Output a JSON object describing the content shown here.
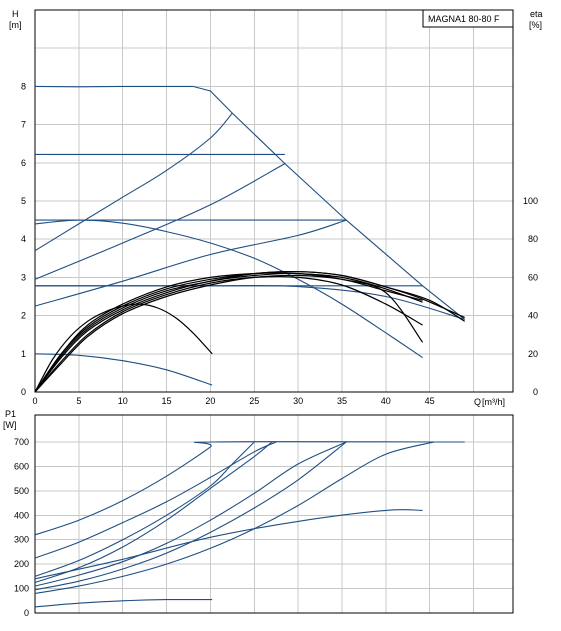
{
  "chart_data": [
    {
      "type": "line",
      "title": "MAGNA1 80-80 F",
      "ylabel_left": "H",
      "ylabel_left_unit": "[m]",
      "ylabel_right": "eta",
      "ylabel_right_unit": "[%]",
      "xlabel": "Q",
      "xlabel_unit": "[m³/h]",
      "xlim": [
        0,
        50
      ],
      "ylim_left": [
        0,
        10
      ],
      "ylim_right": [
        0,
        200
      ],
      "grid": true,
      "x_ticks": [
        "0",
        "5",
        "10",
        "15",
        "20",
        "25",
        "30",
        "35",
        "40",
        "45"
      ],
      "y_ticks_left": [
        "0",
        "1",
        "2",
        "3",
        "4",
        "5",
        "6",
        "7",
        "8"
      ],
      "y_ticks_right": [
        "0",
        "20",
        "40",
        "60",
        "80",
        "100"
      ],
      "colors": {
        "pump": "#1f4f82",
        "eta": "#000000"
      },
      "series": [
        {
          "axis": "left",
          "role": "pump",
          "points": [
            [
              0,
              8.0
            ],
            [
              5,
              7.99
            ],
            [
              10,
              8.0
            ],
            [
              15,
              8.0
            ],
            [
              18,
              8.0
            ],
            [
              20,
              7.88
            ],
            [
              22.5,
              7.3
            ],
            [
              28.5,
              5.98
            ],
            [
              35.5,
              4.5
            ],
            [
              44.2,
              2.78
            ],
            [
              49,
              1.9
            ]
          ]
        },
        {
          "axis": "left",
          "role": "pump",
          "points": [
            [
              0,
              6.22
            ],
            [
              28.5,
              6.22
            ]
          ]
        },
        {
          "axis": "left",
          "role": "pump",
          "points": [
            [
              0,
              4.5
            ],
            [
              35.5,
              4.5
            ]
          ]
        },
        {
          "axis": "left",
          "role": "pump",
          "points": [
            [
              0,
              2.78
            ],
            [
              44.2,
              2.78
            ]
          ]
        },
        {
          "axis": "left",
          "role": "pump",
          "points": [
            [
              0,
              3.7
            ],
            [
              5,
              4.4
            ],
            [
              10,
              5.1
            ],
            [
              15,
              5.8
            ],
            [
              20,
              6.65
            ],
            [
              22.5,
              7.3
            ]
          ]
        },
        {
          "axis": "left",
          "role": "pump",
          "points": [
            [
              0,
              2.95
            ],
            [
              10,
              3.9
            ],
            [
              20,
              4.9
            ],
            [
              28.5,
              5.98
            ]
          ]
        },
        {
          "axis": "left",
          "role": "pump",
          "points": [
            [
              0,
              2.25
            ],
            [
              10,
              2.9
            ],
            [
              20,
              3.6
            ],
            [
              30,
              4.1
            ],
            [
              35.5,
              4.5
            ]
          ]
        },
        {
          "axis": "left",
          "role": "pump",
          "points": [
            [
              0,
              4.4
            ],
            [
              5,
              4.5
            ],
            [
              10,
              4.42
            ],
            [
              15,
              4.2
            ],
            [
              20,
              3.9
            ],
            [
              25,
              3.5
            ],
            [
              30,
              2.95
            ],
            [
              35,
              2.3
            ],
            [
              40,
              1.55
            ],
            [
              44.2,
              0.9
            ]
          ]
        },
        {
          "axis": "left",
          "role": "pump",
          "points": [
            [
              0,
              1.0
            ],
            [
              5,
              0.96
            ],
            [
              10,
              0.82
            ],
            [
              15,
              0.58
            ],
            [
              20.2,
              0.18
            ]
          ]
        },
        {
          "axis": "left",
          "role": "pump",
          "points": [
            [
              0,
              2.78
            ],
            [
              10,
              2.78
            ],
            [
              20,
              2.78
            ],
            [
              30,
              2.76
            ],
            [
              40,
              2.5
            ],
            [
              49,
              1.9
            ]
          ]
        },
        {
          "axis": "right",
          "role": "eta",
          "points": [
            [
              0,
              0
            ],
            [
              3,
              20
            ],
            [
              6,
              34
            ],
            [
              10,
              45
            ],
            [
              15,
              54
            ],
            [
              20,
              59
            ],
            [
              25,
              62
            ],
            [
              30,
              63
            ],
            [
              35,
              61
            ],
            [
              40,
              55
            ],
            [
              45,
              48
            ],
            [
              49,
              37
            ]
          ]
        },
        {
          "axis": "right",
          "role": "eta",
          "points": [
            [
              0,
              0
            ],
            [
              3,
              18
            ],
            [
              6,
              32
            ],
            [
              10,
              43
            ],
            [
              15,
              52
            ],
            [
              20,
              58
            ],
            [
              25,
              61
            ],
            [
              30,
              62
            ],
            [
              35,
              59
            ],
            [
              40,
              52
            ],
            [
              44.2,
              26
            ]
          ]
        },
        {
          "axis": "right",
          "role": "eta",
          "points": [
            [
              0,
              0
            ],
            [
              3,
              19
            ],
            [
              6,
              33
            ],
            [
              10,
              44
            ],
            [
              15,
              53
            ],
            [
              20,
              58
            ],
            [
              25,
              62
            ],
            [
              30,
              63
            ],
            [
              35,
              61
            ],
            [
              40,
              55
            ],
            [
              44,
              49
            ],
            [
              49,
              39
            ]
          ]
        },
        {
          "axis": "right",
          "role": "eta",
          "points": [
            [
              0,
              0
            ],
            [
              3,
              16
            ],
            [
              6,
              30
            ],
            [
              10,
              42
            ],
            [
              15,
              51
            ],
            [
              20,
              57
            ],
            [
              25,
              60
            ],
            [
              30,
              60
            ],
            [
              35,
              56
            ],
            [
              40,
              46
            ],
            [
              44.2,
              35
            ]
          ]
        },
        {
          "axis": "right",
          "role": "eta",
          "points": [
            [
              0,
              0
            ],
            [
              3,
              20
            ],
            [
              6,
              35
            ],
            [
              10,
              46
            ],
            [
              15,
              55
            ],
            [
              20,
              60
            ],
            [
              25,
              62
            ],
            [
              30,
              62
            ],
            [
              35,
              60
            ],
            [
              40,
              54
            ],
            [
              44.2,
              47
            ]
          ]
        },
        {
          "axis": "right",
          "role": "eta",
          "points": [
            [
              0,
              0
            ],
            [
              3,
              15
            ],
            [
              6,
              29
            ],
            [
              10,
              41
            ],
            [
              15,
              50
            ],
            [
              20,
              56
            ],
            [
              25,
              60
            ],
            [
              30,
              61
            ],
            [
              35,
              59
            ],
            [
              40,
              53
            ],
            [
              44.2,
              48
            ]
          ]
        },
        {
          "axis": "right",
          "role": "eta",
          "points": [
            [
              0,
              0
            ],
            [
              2,
              17
            ],
            [
              4,
              29
            ],
            [
              6,
              37
            ],
            [
              8,
              42
            ],
            [
              10,
              45
            ],
            [
              12,
              46
            ],
            [
              14,
              44
            ],
            [
              16,
              39
            ],
            [
              18,
              31
            ],
            [
              20.2,
              20
            ]
          ]
        }
      ]
    },
    {
      "type": "line",
      "ylabel": "P1",
      "ylabel_unit": "[W]",
      "xlim": [
        0,
        50
      ],
      "ylim": [
        0,
        750
      ],
      "grid": true,
      "y_ticks": [
        "0",
        "100",
        "200",
        "300",
        "400",
        "500",
        "600",
        "700"
      ],
      "colors": {
        "pump": "#1f4f82"
      },
      "series": [
        {
          "points": [
            [
              0,
              320
            ],
            [
              5,
              380
            ],
            [
              10,
              460
            ],
            [
              15,
              560
            ],
            [
              20,
              680
            ],
            [
              20.2,
              700
            ],
            [
              49,
              700
            ]
          ]
        },
        {
          "points": [
            [
              0,
              225
            ],
            [
              5,
              290
            ],
            [
              10,
              370
            ],
            [
              15,
              455
            ],
            [
              20,
              555
            ],
            [
              25,
              660
            ],
            [
              27.5,
              700
            ]
          ]
        },
        {
          "points": [
            [
              0,
              150
            ],
            [
              5,
              215
            ],
            [
              10,
              300
            ],
            [
              15,
              400
            ],
            [
              20,
              520
            ],
            [
              22.5,
              610
            ],
            [
              25,
              700
            ]
          ]
        },
        {
          "points": [
            [
              0,
              125
            ],
            [
              5,
              185
            ],
            [
              10,
              270
            ],
            [
              15,
              380
            ],
            [
              20,
              510
            ],
            [
              25,
              640
            ],
            [
              27,
              700
            ]
          ]
        },
        {
          "points": [
            [
              0,
              110
            ],
            [
              5,
              155
            ],
            [
              10,
              210
            ],
            [
              15,
              285
            ],
            [
              20,
              380
            ],
            [
              25,
              490
            ],
            [
              30,
              610
            ],
            [
              35.5,
              700
            ]
          ]
        },
        {
          "points": [
            [
              0,
              95
            ],
            [
              5,
              130
            ],
            [
              10,
              180
            ],
            [
              15,
              245
            ],
            [
              20,
              330
            ],
            [
              25,
              430
            ],
            [
              30,
              545
            ],
            [
              35.5,
              700
            ]
          ]
        },
        {
          "points": [
            [
              0,
              80
            ],
            [
              5,
              110
            ],
            [
              10,
              150
            ],
            [
              15,
              200
            ],
            [
              20,
              265
            ],
            [
              25,
              345
            ],
            [
              30,
              440
            ],
            [
              35,
              550
            ],
            [
              40,
              650
            ],
            [
              45.5,
              700
            ]
          ]
        },
        {
          "points": [
            [
              0,
              140
            ],
            [
              10,
              220
            ],
            [
              20,
              310
            ],
            [
              30,
              375
            ],
            [
              40,
              420
            ],
            [
              44.2,
              420
            ]
          ]
        },
        {
          "points": [
            [
              0,
              25
            ],
            [
              5,
              40
            ],
            [
              10,
              50
            ],
            [
              15,
              55
            ],
            [
              20.2,
              55
            ]
          ]
        }
      ]
    }
  ]
}
